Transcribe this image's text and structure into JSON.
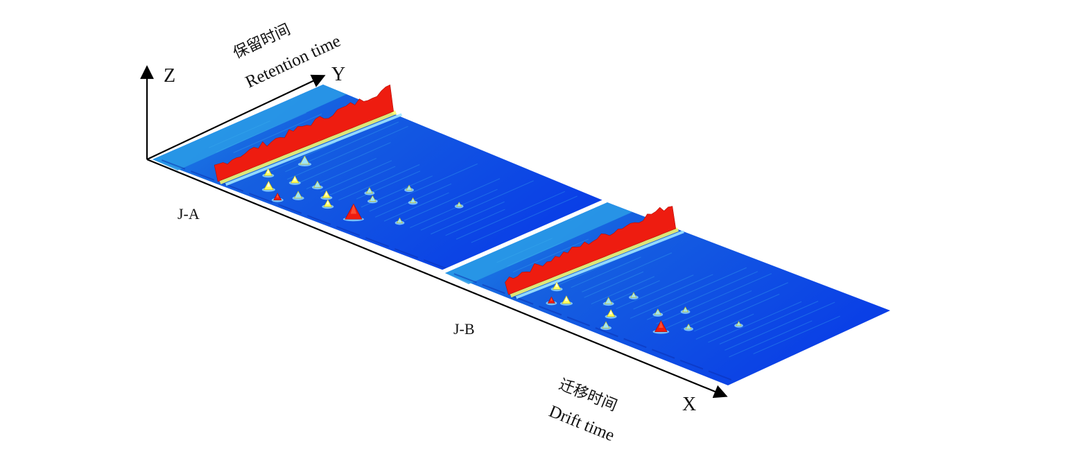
{
  "chart_data": {
    "type": "3d-surface",
    "axes": {
      "x": {
        "letter": "X",
        "label_cn": "迁移时间",
        "label_en": "Drift time"
      },
      "y": {
        "letter": "Y",
        "label_cn": "保留时间",
        "label_en": "Retention time"
      },
      "z": {
        "letter": "Z"
      }
    },
    "samples": [
      {
        "name": "J-A"
      },
      {
        "name": "J-B"
      }
    ],
    "colors": {
      "background_low": "#0a3fe6",
      "background_mid": "#1f8ee8",
      "peak_low": "#9fe6ff",
      "peak_mid": "#ffff66",
      "peak_high": "#ee1c10"
    }
  }
}
